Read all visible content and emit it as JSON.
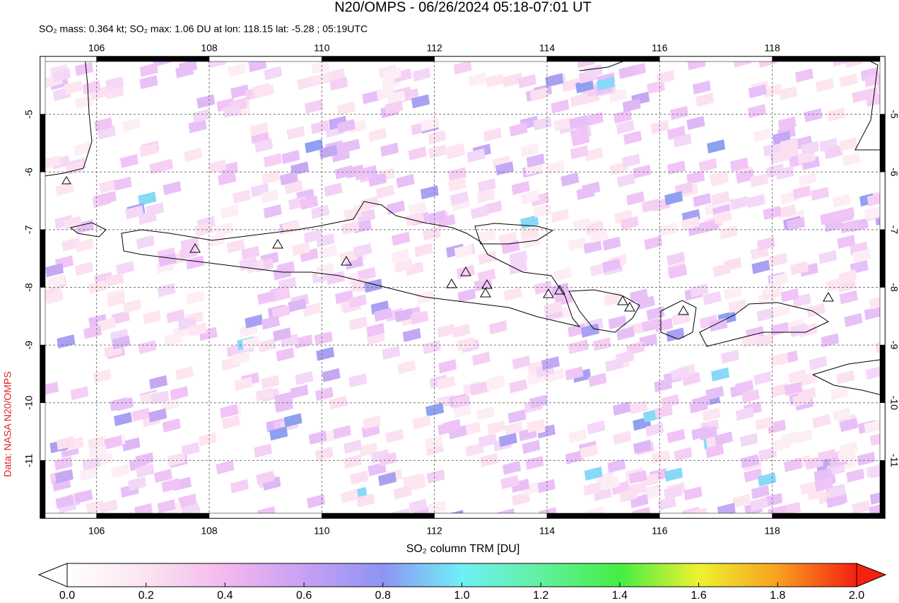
{
  "chart_data": {
    "type": "map",
    "title": "N20/OMPS - 06/26/2024 05:18-07:01 UT",
    "subtitle": "SO₂ mass: 0.364 kt; SO₂ max: 1.06 DU at lon: 118.15 lat: -5.28 ; 05:19UTC",
    "credit": "Data: NASA N20/OMPS",
    "xlim": [
      105,
      120
    ],
    "ylim": [
      -12,
      -4
    ],
    "xticks": [
      106,
      108,
      110,
      112,
      114,
      116,
      118
    ],
    "yticks": [
      -5,
      -6,
      -7,
      -8,
      -9,
      -10,
      -11
    ],
    "grid": true,
    "colorbar": {
      "label": "SO₂ column TRM [DU]",
      "lim": [
        0,
        2
      ],
      "ticks": [
        {
          "value": 0,
          "label": "0.0"
        },
        {
          "value": 0.2,
          "label": "0.2"
        },
        {
          "value": 0.4,
          "label": "0.4"
        },
        {
          "value": 0.6,
          "label": "0.6"
        },
        {
          "value": 0.8,
          "label": "0.8"
        },
        {
          "value": 1,
          "label": "1.0"
        },
        {
          "value": 1.2,
          "label": "1.2"
        },
        {
          "value": 1.4,
          "label": "1.4"
        },
        {
          "value": 1.6,
          "label": "1.6"
        },
        {
          "value": 1.8,
          "label": "1.8"
        },
        {
          "value": 2,
          "label": "2.0"
        }
      ]
    }
  }
}
